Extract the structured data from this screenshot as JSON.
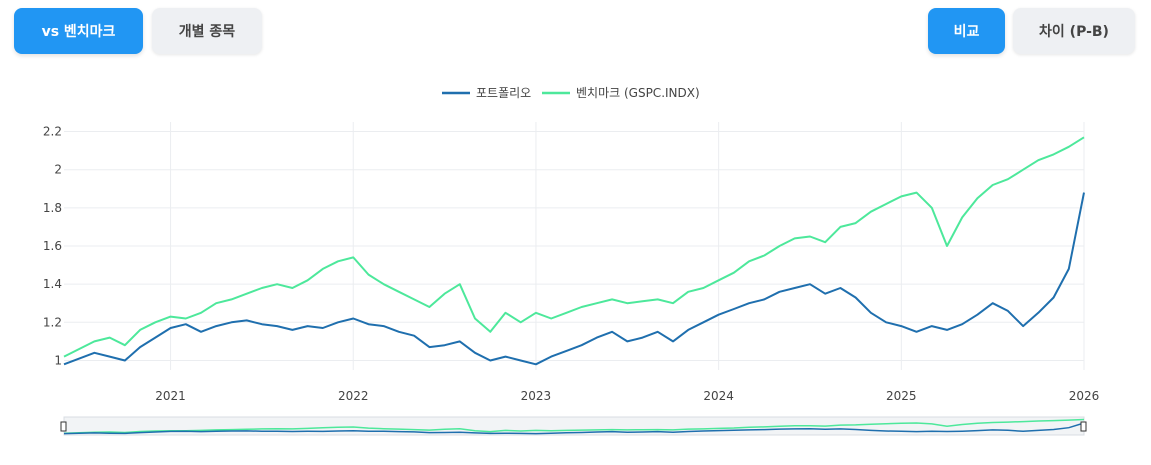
{
  "toolbar": {
    "benchmark_label": "vs 벤치마크",
    "individual_label": "개별 종목",
    "compare_label": "비교",
    "diff_label": "차이 (P-B)"
  },
  "colors": {
    "portfolio": "#1f6fae",
    "benchmark": "#4de89b",
    "active_button": "#2196f3",
    "inactive_button": "#eef0f3"
  },
  "chart_data": {
    "type": "line",
    "legend_position": "top-center",
    "grid": true,
    "title": "",
    "xlabel": "",
    "ylabel": "",
    "x_range": [
      "2020-06",
      "2026-01"
    ],
    "ylim": [
      0.95,
      2.25
    ],
    "x_ticks": [
      "2021",
      "2022",
      "2023",
      "2024",
      "2025",
      "2026"
    ],
    "y_ticks": [
      "1",
      "1.2",
      "1.4",
      "1.6",
      "1.8",
      "2",
      "2.2"
    ],
    "x": [
      "2020-06",
      "2020-07",
      "2020-08",
      "2020-09",
      "2020-10",
      "2020-11",
      "2020-12",
      "2021-01",
      "2021-02",
      "2021-03",
      "2021-04",
      "2021-05",
      "2021-06",
      "2021-07",
      "2021-08",
      "2021-09",
      "2021-10",
      "2021-11",
      "2021-12",
      "2022-01",
      "2022-02",
      "2022-03",
      "2022-04",
      "2022-05",
      "2022-06",
      "2022-07",
      "2022-08",
      "2022-09",
      "2022-10",
      "2022-11",
      "2022-12",
      "2023-01",
      "2023-02",
      "2023-03",
      "2023-04",
      "2023-05",
      "2023-06",
      "2023-07",
      "2023-08",
      "2023-09",
      "2023-10",
      "2023-11",
      "2023-12",
      "2024-01",
      "2024-02",
      "2024-03",
      "2024-04",
      "2024-05",
      "2024-06",
      "2024-07",
      "2024-08",
      "2024-09",
      "2024-10",
      "2024-11",
      "2024-12",
      "2025-01",
      "2025-02",
      "2025-03",
      "2025-04",
      "2025-05",
      "2025-06",
      "2025-07",
      "2025-08",
      "2025-09",
      "2025-10",
      "2025-11",
      "2025-12",
      "2026-01"
    ],
    "series": [
      {
        "name": "포트폴리오",
        "values": [
          0.98,
          1.01,
          1.04,
          1.02,
          1.0,
          1.07,
          1.12,
          1.17,
          1.19,
          1.15,
          1.18,
          1.2,
          1.21,
          1.19,
          1.18,
          1.16,
          1.18,
          1.17,
          1.2,
          1.22,
          1.19,
          1.18,
          1.15,
          1.13,
          1.07,
          1.08,
          1.1,
          1.04,
          1.0,
          1.02,
          1.0,
          0.98,
          1.02,
          1.05,
          1.08,
          1.12,
          1.15,
          1.1,
          1.12,
          1.15,
          1.1,
          1.16,
          1.2,
          1.24,
          1.27,
          1.3,
          1.32,
          1.36,
          1.38,
          1.4,
          1.35,
          1.38,
          1.33,
          1.25,
          1.2,
          1.18,
          1.15,
          1.18,
          1.16,
          1.19,
          1.24,
          1.3,
          1.26,
          1.18,
          1.25,
          1.33,
          1.48,
          1.88
        ]
      },
      {
        "name": "벤치마크 (GSPC.INDX)",
        "values": [
          1.02,
          1.06,
          1.1,
          1.12,
          1.08,
          1.16,
          1.2,
          1.23,
          1.22,
          1.25,
          1.3,
          1.32,
          1.35,
          1.38,
          1.4,
          1.38,
          1.42,
          1.48,
          1.52,
          1.54,
          1.45,
          1.4,
          1.36,
          1.32,
          1.28,
          1.35,
          1.4,
          1.22,
          1.15,
          1.25,
          1.2,
          1.25,
          1.22,
          1.25,
          1.28,
          1.3,
          1.32,
          1.3,
          1.31,
          1.32,
          1.3,
          1.36,
          1.38,
          1.42,
          1.46,
          1.52,
          1.55,
          1.6,
          1.64,
          1.65,
          1.62,
          1.7,
          1.72,
          1.78,
          1.82,
          1.86,
          1.88,
          1.8,
          1.6,
          1.75,
          1.85,
          1.92,
          1.95,
          2.0,
          2.05,
          2.08,
          2.12,
          2.17
        ]
      }
    ]
  }
}
